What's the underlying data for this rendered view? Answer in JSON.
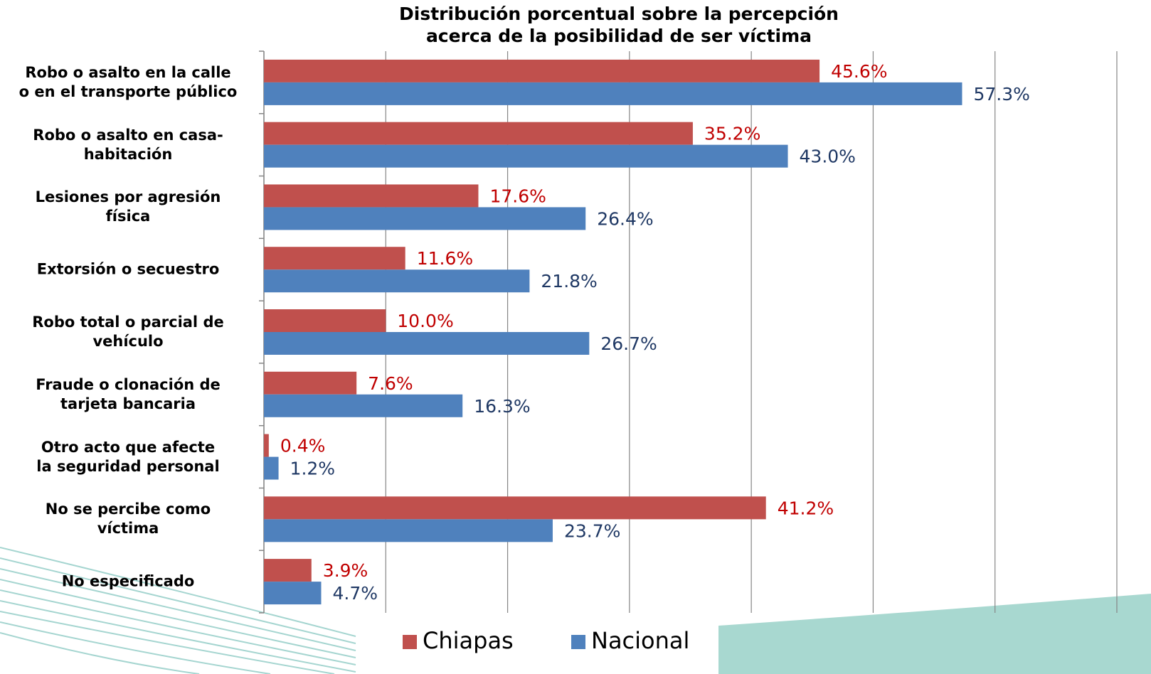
{
  "chart_data": {
    "type": "bar",
    "orientation": "horizontal",
    "title": "Distribución porcentual sobre la percepción\nacerca de la posibilidad de ser víctima",
    "categories": [
      "Robo o asalto en la calle\no en el transporte público",
      "Robo o asalto en casa-\nhabitación",
      "Lesiones por agresión\nfísica",
      "Extorsión o secuestro",
      "Robo total o parcial de\nvehículo",
      "Fraude o clonación de\ntarjeta bancaria",
      "Otro acto que afecte\nla seguridad personal",
      "No se percibe como\nvíctima",
      "No especificado"
    ],
    "series": [
      {
        "name": "Chiapas",
        "color": "#c0504d",
        "label_color": "#c00000",
        "values": [
          45.6,
          35.2,
          17.6,
          11.6,
          10.0,
          7.6,
          0.4,
          41.2,
          3.9
        ],
        "value_labels": [
          "45.6%",
          "35.2%",
          "17.6%",
          "11.6%",
          "10.0%",
          "7.6%",
          "0.4%",
          "41.2%",
          "3.9%"
        ]
      },
      {
        "name": "Nacional",
        "color": "#4f81bd",
        "label_color": "#1f3864",
        "values": [
          57.3,
          43.0,
          26.4,
          21.8,
          26.7,
          16.3,
          1.2,
          23.7,
          4.7
        ],
        "value_labels": [
          "57.3%",
          "43.0%",
          "26.4%",
          "21.8%",
          "26.7%",
          "16.3%",
          "1.2%",
          "23.7%",
          "4.7%"
        ]
      }
    ],
    "xlim": [
      0,
      70
    ],
    "xticks": [
      0,
      10,
      20,
      30,
      40,
      50,
      60,
      70
    ],
    "grid": true,
    "legend": "bottom"
  }
}
